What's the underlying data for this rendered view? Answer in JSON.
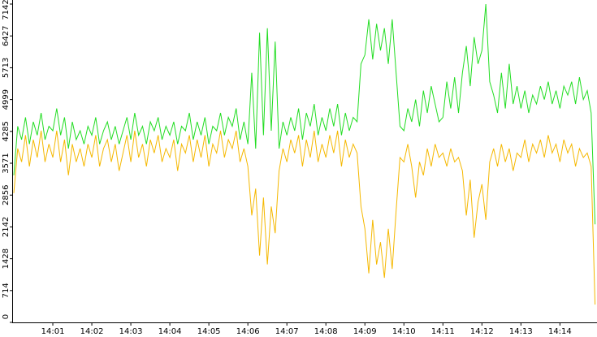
{
  "chart_data": {
    "type": "line",
    "x": [
      0,
      0.1,
      0.2,
      0.3,
      0.4,
      0.5,
      0.6,
      0.7,
      0.8,
      0.9,
      1,
      1.1,
      1.2,
      1.3,
      1.4,
      1.5,
      1.6,
      1.7,
      1.8,
      1.9,
      2,
      2.1,
      2.2,
      2.3,
      2.4,
      2.5,
      2.6,
      2.7,
      2.8,
      2.9,
      3,
      3.1,
      3.2,
      3.3,
      3.4,
      3.5,
      3.6,
      3.7,
      3.8,
      3.9,
      4,
      4.1,
      4.2,
      4.3,
      4.4,
      4.5,
      4.6,
      4.7,
      4.8,
      4.9,
      5,
      5.1,
      5.2,
      5.3,
      5.4,
      5.5,
      5.6,
      5.7,
      5.8,
      5.9,
      6,
      6.1,
      6.2,
      6.3,
      6.4,
      6.5,
      6.6,
      6.7,
      6.8,
      6.9,
      7,
      7.1,
      7.2,
      7.3,
      7.4,
      7.5,
      7.6,
      7.7,
      7.8,
      7.9,
      8,
      8.1,
      8.2,
      8.3,
      8.4,
      8.5,
      8.6,
      8.7,
      8.8,
      8.9,
      9,
      9.1,
      9.2,
      9.3,
      9.4,
      9.5,
      9.6,
      9.7,
      9.8,
      9.9,
      10,
      10.1,
      10.2,
      10.3,
      10.4,
      10.5,
      10.6,
      10.7,
      10.8,
      10.9,
      11,
      11.1,
      11.2,
      11.3,
      11.4,
      11.5,
      11.6,
      11.7,
      11.8,
      11.9,
      12,
      12.1,
      12.2,
      12.3,
      12.4,
      12.5,
      12.6,
      12.7,
      12.8,
      12.9,
      13,
      13.1,
      13.2,
      13.3,
      13.4,
      13.5,
      13.6,
      13.7,
      13.8,
      13.9,
      14,
      14.1,
      14.2,
      14.3,
      14.4,
      14.5,
      14.6,
      14.7,
      14.8,
      14.9
    ],
    "series": [
      {
        "color": "#22dd22",
        "values": [
          3300,
          4400,
          4100,
          4600,
          4000,
          4500,
          4200,
          4700,
          4100,
          4400,
          4300,
          4800,
          4200,
          4600,
          3900,
          4500,
          4100,
          4300,
          4000,
          4400,
          4200,
          4600,
          4000,
          4300,
          4500,
          4100,
          4400,
          4000,
          4300,
          4600,
          4100,
          4700,
          4200,
          4400,
          4000,
          4500,
          4300,
          4600,
          4100,
          4400,
          4200,
          4500,
          4000,
          4400,
          4300,
          4700,
          4100,
          4500,
          4200,
          4600,
          4000,
          4400,
          4300,
          4700,
          4200,
          4600,
          4400,
          4800,
          4100,
          4500,
          4000,
          5600,
          3900,
          6500,
          4200,
          6600,
          4300,
          6300,
          3900,
          4500,
          4200,
          4600,
          4300,
          4800,
          4100,
          4700,
          4400,
          4900,
          4200,
          4600,
          4300,
          4800,
          4400,
          4900,
          4200,
          4700,
          4300,
          4600,
          4500,
          5800,
          6000,
          6800,
          5900,
          6700,
          6100,
          6600,
          5800,
          6800,
          5600,
          4400,
          4300,
          4800,
          4500,
          5000,
          4400,
          5200,
          4700,
          5300,
          4900,
          4500,
          4600,
          5400,
          4800,
          5500,
          4700,
          5600,
          6200,
          5300,
          6400,
          5800,
          6100,
          7142,
          5400,
          5100,
          4700,
          5600,
          4800,
          5800,
          4900,
          5300,
          4800,
          5200,
          4700,
          5100,
          4900,
          5300,
          5000,
          5400,
          4900,
          5200,
          4800,
          5300,
          5100,
          5400,
          4900,
          5500,
          5000,
          5200,
          4700,
          2200
        ]
      },
      {
        "color": "#f5b800",
        "values": [
          2900,
          3900,
          3600,
          4200,
          3500,
          4100,
          3700,
          4300,
          3600,
          4000,
          3700,
          4300,
          3600,
          4100,
          3300,
          4000,
          3600,
          3900,
          3500,
          4000,
          3700,
          4200,
          3500,
          3900,
          4100,
          3600,
          4000,
          3400,
          3800,
          4200,
          3600,
          4300,
          3700,
          4000,
          3500,
          4100,
          3800,
          4200,
          3600,
          3900,
          3700,
          4100,
          3400,
          4000,
          3800,
          4200,
          3600,
          4100,
          3700,
          4200,
          3500,
          4000,
          3800,
          4300,
          3700,
          4100,
          3900,
          4300,
          3600,
          3900,
          3500,
          2400,
          3000,
          1500,
          2800,
          1300,
          2600,
          2000,
          3400,
          3900,
          3600,
          4100,
          3800,
          4200,
          3500,
          4100,
          3700,
          4300,
          3600,
          4000,
          3700,
          4200,
          3800,
          4300,
          3500,
          4100,
          3700,
          4000,
          3800,
          2600,
          2100,
          1100,
          2300,
          1300,
          1800,
          1000,
          2100,
          1200,
          2500,
          3700,
          3600,
          4000,
          3500,
          2800,
          3600,
          3300,
          3900,
          3500,
          4000,
          3700,
          3800,
          3500,
          3900,
          3600,
          3700,
          3400,
          2400,
          3200,
          1900,
          2700,
          3100,
          2300,
          3600,
          3900,
          3500,
          4000,
          3600,
          3900,
          3400,
          3800,
          3700,
          4100,
          3600,
          4000,
          3800,
          4100,
          3700,
          4200,
          3800,
          4000,
          3600,
          4100,
          3800,
          4000,
          3500,
          3900,
          3700,
          3800,
          3500,
          400
        ]
      }
    ],
    "xlim": [
      0,
      14.95
    ],
    "xticks": [
      {
        "value": 1,
        "label": "14:01"
      },
      {
        "value": 2,
        "label": "14:02"
      },
      {
        "value": 3,
        "label": "14:03"
      },
      {
        "value": 4,
        "label": "14:04"
      },
      {
        "value": 5,
        "label": "14:05"
      },
      {
        "value": 6,
        "label": "14:06"
      },
      {
        "value": 7,
        "label": "14:07"
      },
      {
        "value": 8,
        "label": "14:08"
      },
      {
        "value": 9,
        "label": "14:09"
      },
      {
        "value": 10,
        "label": "14:10"
      },
      {
        "value": 11,
        "label": "14:11"
      },
      {
        "value": 12,
        "label": "14:12"
      },
      {
        "value": 13,
        "label": "14:13"
      },
      {
        "value": 14,
        "label": "14:14"
      }
    ],
    "ylim": [
      0,
      7142
    ],
    "yticks": [
      0,
      714,
      1428,
      2142,
      2856,
      3571,
      4285,
      4999,
      5713,
      6427,
      7142
    ],
    "grid": false
  }
}
